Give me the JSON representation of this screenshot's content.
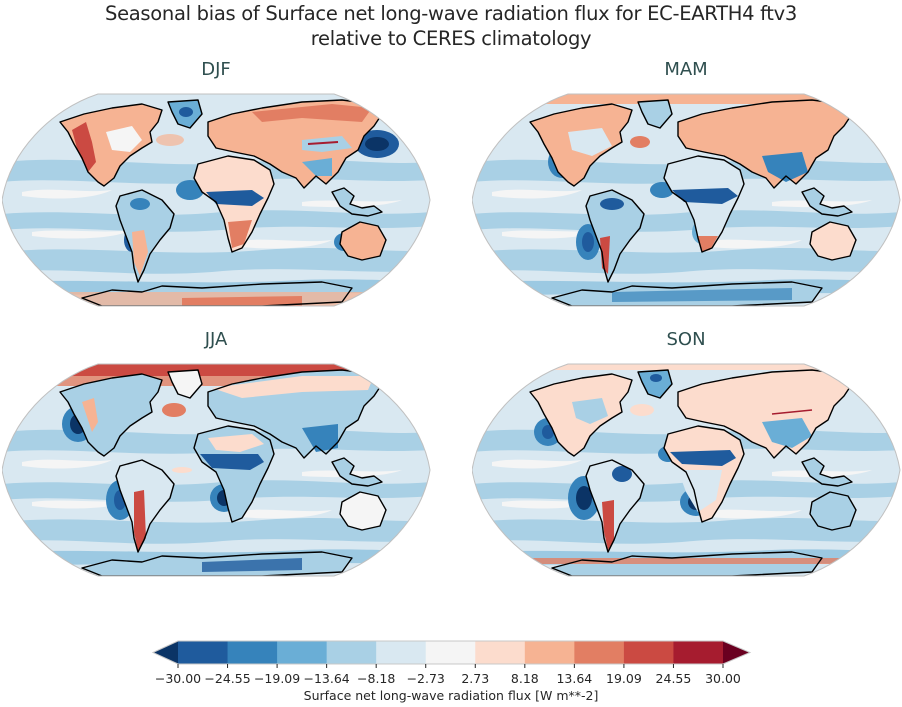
{
  "figure": {
    "title_line1": "Seasonal bias of Surface net long-wave radiation flux for EC-EARTH4 ftv3",
    "title_line2": "relative to CERES climatology"
  },
  "panels": [
    {
      "id": "djf",
      "label": "DJF"
    },
    {
      "id": "mam",
      "label": "MAM"
    },
    {
      "id": "jja",
      "label": "JJA"
    },
    {
      "id": "son",
      "label": "SON"
    }
  ],
  "colorbar": {
    "label": "Surface net long-wave radiation flux [W m**-2]",
    "ticks": [
      "−30.00",
      "−24.55",
      "−19.09",
      "−13.64",
      "−8.18",
      "−2.73",
      "2.73",
      "8.18",
      "13.64",
      "19.09",
      "24.55",
      "30.00"
    ],
    "colors": [
      "#1f5b9d",
      "#3683bb",
      "#6aaed6",
      "#a9d0e5",
      "#d9e8f1",
      "#f5f5f5",
      "#fcdccd",
      "#f6b393",
      "#e27e63",
      "#cb4a42",
      "#a61c2f"
    ],
    "under_color": "#0b3466",
    "over_color": "#6a0020"
  },
  "chart_data": {
    "type": "heatmap",
    "title": "Seasonal bias of Surface net long-wave radiation flux for EC-EARTH4 ftv3 relative to CERES climatology",
    "subplots": [
      "DJF",
      "MAM",
      "JJA",
      "SON"
    ],
    "projection": "Robinson (global map)",
    "colorbar_label": "Surface net long-wave radiation flux [W m**-2]",
    "levels": [
      -30.0,
      -24.55,
      -19.09,
      -13.64,
      -8.18,
      -2.73,
      2.73,
      8.18,
      13.64,
      19.09,
      24.55,
      30.0
    ],
    "vmin": -30.0,
    "vmax": 30.0,
    "extend": "both",
    "colormap": "RdBu_r",
    "xlabel": "",
    "ylabel": "",
    "qualitative_patterns": {
      "DJF": "Positive bias over northern high-latitude land (N. America, Eurasia) and Antarctic coastal band; strong negative bias off East Asia and west African coast; oceans mostly weakly negative",
      "MAM": "Positive bias across Arctic and northern Eurasia; negative bias over tropical Africa, South Asia and eastern Pacific stratocumulus regions",
      "JJA": "Strong positive bias over Arctic Ocean; strong negative bias off California, Peru and Namibia; positive along Andes",
      "SON": "Positive over N. America west and Asia; negative bias belt across Sahel and eastern South Pacific/Atlantic stratocumulus decks"
    }
  }
}
